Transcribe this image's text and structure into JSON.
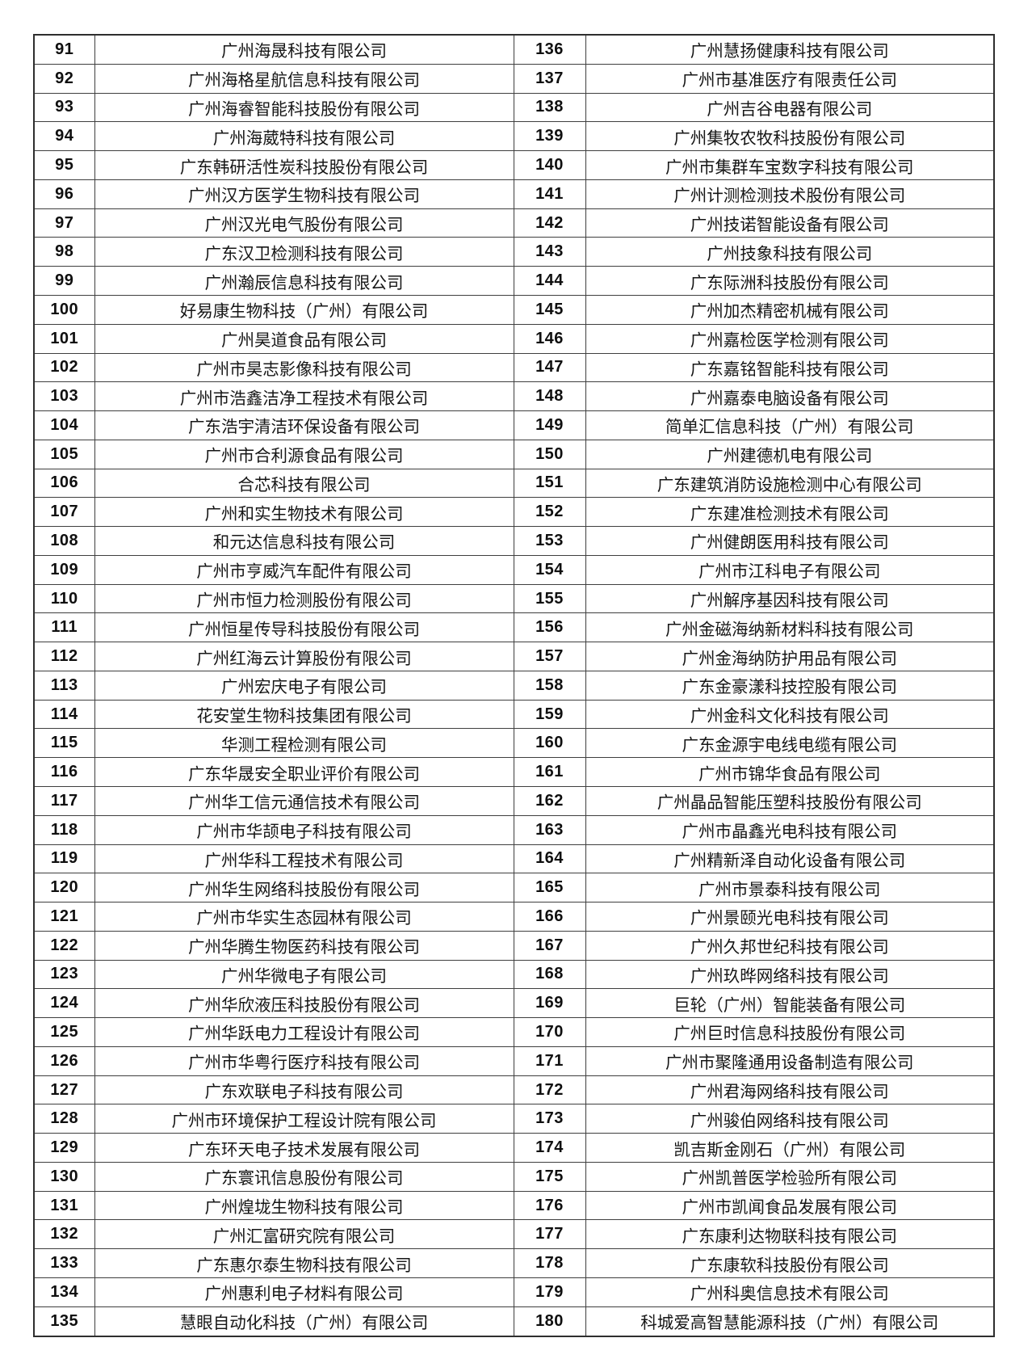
{
  "page": {
    "background_color": "#ffffff",
    "border_color": "#3f3f3f"
  },
  "table": {
    "columns": [
      "rank-left",
      "company-left",
      "rank-right",
      "company-right"
    ],
    "rows": [
      {
        "n1": "91",
        "c1": "广州海晟科技有限公司",
        "n2": "136",
        "c2": "广州慧扬健康科技有限公司"
      },
      {
        "n1": "92",
        "c1": "广州海格星航信息科技有限公司",
        "n2": "137",
        "c2": "广州市基准医疗有限责任公司"
      },
      {
        "n1": "93",
        "c1": "广州海睿智能科技股份有限公司",
        "n2": "138",
        "c2": "广州吉谷电器有限公司"
      },
      {
        "n1": "94",
        "c1": "广州海葳特科技有限公司",
        "n2": "139",
        "c2": "广州集牧农牧科技股份有限公司"
      },
      {
        "n1": "95",
        "c1": "广东韩研活性炭科技股份有限公司",
        "n2": "140",
        "c2": "广州市集群车宝数字科技有限公司"
      },
      {
        "n1": "96",
        "c1": "广州汉方医学生物科技有限公司",
        "n2": "141",
        "c2": "广州计测检测技术股份有限公司"
      },
      {
        "n1": "97",
        "c1": "广州汉光电气股份有限公司",
        "n2": "142",
        "c2": "广州技诺智能设备有限公司"
      },
      {
        "n1": "98",
        "c1": "广东汉卫检测科技有限公司",
        "n2": "143",
        "c2": "广州技象科技有限公司"
      },
      {
        "n1": "99",
        "c1": "广州瀚辰信息科技有限公司",
        "n2": "144",
        "c2": "广东际洲科技股份有限公司"
      },
      {
        "n1": "100",
        "c1": "好易康生物科技（广州）有限公司",
        "n2": "145",
        "c2": "广州加杰精密机械有限公司"
      },
      {
        "n1": "101",
        "c1": "广州昊道食品有限公司",
        "n2": "146",
        "c2": "广州嘉检医学检测有限公司"
      },
      {
        "n1": "102",
        "c1": "广州市昊志影像科技有限公司",
        "n2": "147",
        "c2": "广东嘉铭智能科技有限公司"
      },
      {
        "n1": "103",
        "c1": "广州市浩鑫洁净工程技术有限公司",
        "n2": "148",
        "c2": "广州嘉泰电脑设备有限公司"
      },
      {
        "n1": "104",
        "c1": "广东浩宇清洁环保设备有限公司",
        "n2": "149",
        "c2": "简单汇信息科技（广州）有限公司"
      },
      {
        "n1": "105",
        "c1": "广州市合利源食品有限公司",
        "n2": "150",
        "c2": "广州建德机电有限公司"
      },
      {
        "n1": "106",
        "c1": "合芯科技有限公司",
        "n2": "151",
        "c2": "广东建筑消防设施检测中心有限公司"
      },
      {
        "n1": "107",
        "c1": "广州和实生物技术有限公司",
        "n2": "152",
        "c2": "广东建准检测技术有限公司"
      },
      {
        "n1": "108",
        "c1": "和元达信息科技有限公司",
        "n2": "153",
        "c2": "广州健朗医用科技有限公司"
      },
      {
        "n1": "109",
        "c1": "广州市亨威汽车配件有限公司",
        "n2": "154",
        "c2": "广州市江科电子有限公司"
      },
      {
        "n1": "110",
        "c1": "广州市恒力检测股份有限公司",
        "n2": "155",
        "c2": "广州解序基因科技有限公司"
      },
      {
        "n1": "111",
        "c1": "广州恒星传导科技股份有限公司",
        "n2": "156",
        "c2": "广州金磁海纳新材料科技有限公司"
      },
      {
        "n1": "112",
        "c1": "广州红海云计算股份有限公司",
        "n2": "157",
        "c2": "广州金海纳防护用品有限公司"
      },
      {
        "n1": "113",
        "c1": "广州宏庆电子有限公司",
        "n2": "158",
        "c2": "广东金豪漾科技控股有限公司"
      },
      {
        "n1": "114",
        "c1": "花安堂生物科技集团有限公司",
        "n2": "159",
        "c2": "广州金科文化科技有限公司"
      },
      {
        "n1": "115",
        "c1": "华测工程检测有限公司",
        "n2": "160",
        "c2": "广东金源宇电线电缆有限公司"
      },
      {
        "n1": "116",
        "c1": "广东华晟安全职业评价有限公司",
        "n2": "161",
        "c2": "广州市锦华食品有限公司"
      },
      {
        "n1": "117",
        "c1": "广州华工信元通信技术有限公司",
        "n2": "162",
        "c2": "广州晶品智能压塑科技股份有限公司"
      },
      {
        "n1": "118",
        "c1": "广州市华颉电子科技有限公司",
        "n2": "163",
        "c2": "广州市晶鑫光电科技有限公司"
      },
      {
        "n1": "119",
        "c1": "广州华科工程技术有限公司",
        "n2": "164",
        "c2": "广州精新泽自动化设备有限公司"
      },
      {
        "n1": "120",
        "c1": "广州华生网络科技股份有限公司",
        "n2": "165",
        "c2": "广州市景泰科技有限公司"
      },
      {
        "n1": "121",
        "c1": "广州市华实生态园林有限公司",
        "n2": "166",
        "c2": "广州景颐光电科技有限公司"
      },
      {
        "n1": "122",
        "c1": "广州华腾生物医药科技有限公司",
        "n2": "167",
        "c2": "广州久邦世纪科技有限公司"
      },
      {
        "n1": "123",
        "c1": "广州华微电子有限公司",
        "n2": "168",
        "c2": "广州玖晔网络科技有限公司"
      },
      {
        "n1": "124",
        "c1": "广州华欣液压科技股份有限公司",
        "n2": "169",
        "c2": "巨轮（广州）智能装备有限公司"
      },
      {
        "n1": "125",
        "c1": "广州华跃电力工程设计有限公司",
        "n2": "170",
        "c2": "广州巨时信息科技股份有限公司"
      },
      {
        "n1": "126",
        "c1": "广州市华粤行医疗科技有限公司",
        "n2": "171",
        "c2": "广州市聚隆通用设备制造有限公司"
      },
      {
        "n1": "127",
        "c1": "广东欢联电子科技有限公司",
        "n2": "172",
        "c2": "广州君海网络科技有限公司"
      },
      {
        "n1": "128",
        "c1": "广州市环境保护工程设计院有限公司",
        "n2": "173",
        "c2": "广州骏伯网络科技有限公司"
      },
      {
        "n1": "129",
        "c1": "广东环天电子技术发展有限公司",
        "n2": "174",
        "c2": "凯吉斯金刚石（广州）有限公司"
      },
      {
        "n1": "130",
        "c1": "广东寰讯信息股份有限公司",
        "n2": "175",
        "c2": "广州凯普医学检验所有限公司"
      },
      {
        "n1": "131",
        "c1": "广州煌垅生物科技有限公司",
        "n2": "176",
        "c2": "广州市凯闻食品发展有限公司"
      },
      {
        "n1": "132",
        "c1": "广州汇富研究院有限公司",
        "n2": "177",
        "c2": "广东康利达物联科技有限公司"
      },
      {
        "n1": "133",
        "c1": "广东惠尔泰生物科技有限公司",
        "n2": "178",
        "c2": "广东康软科技股份有限公司"
      },
      {
        "n1": "134",
        "c1": "广州惠利电子材料有限公司",
        "n2": "179",
        "c2": "广州科奥信息技术有限公司"
      },
      {
        "n1": "135",
        "c1": "慧眼自动化科技（广州）有限公司",
        "n2": "180",
        "c2": "科城爱高智慧能源科技（广州）有限公司"
      }
    ]
  }
}
